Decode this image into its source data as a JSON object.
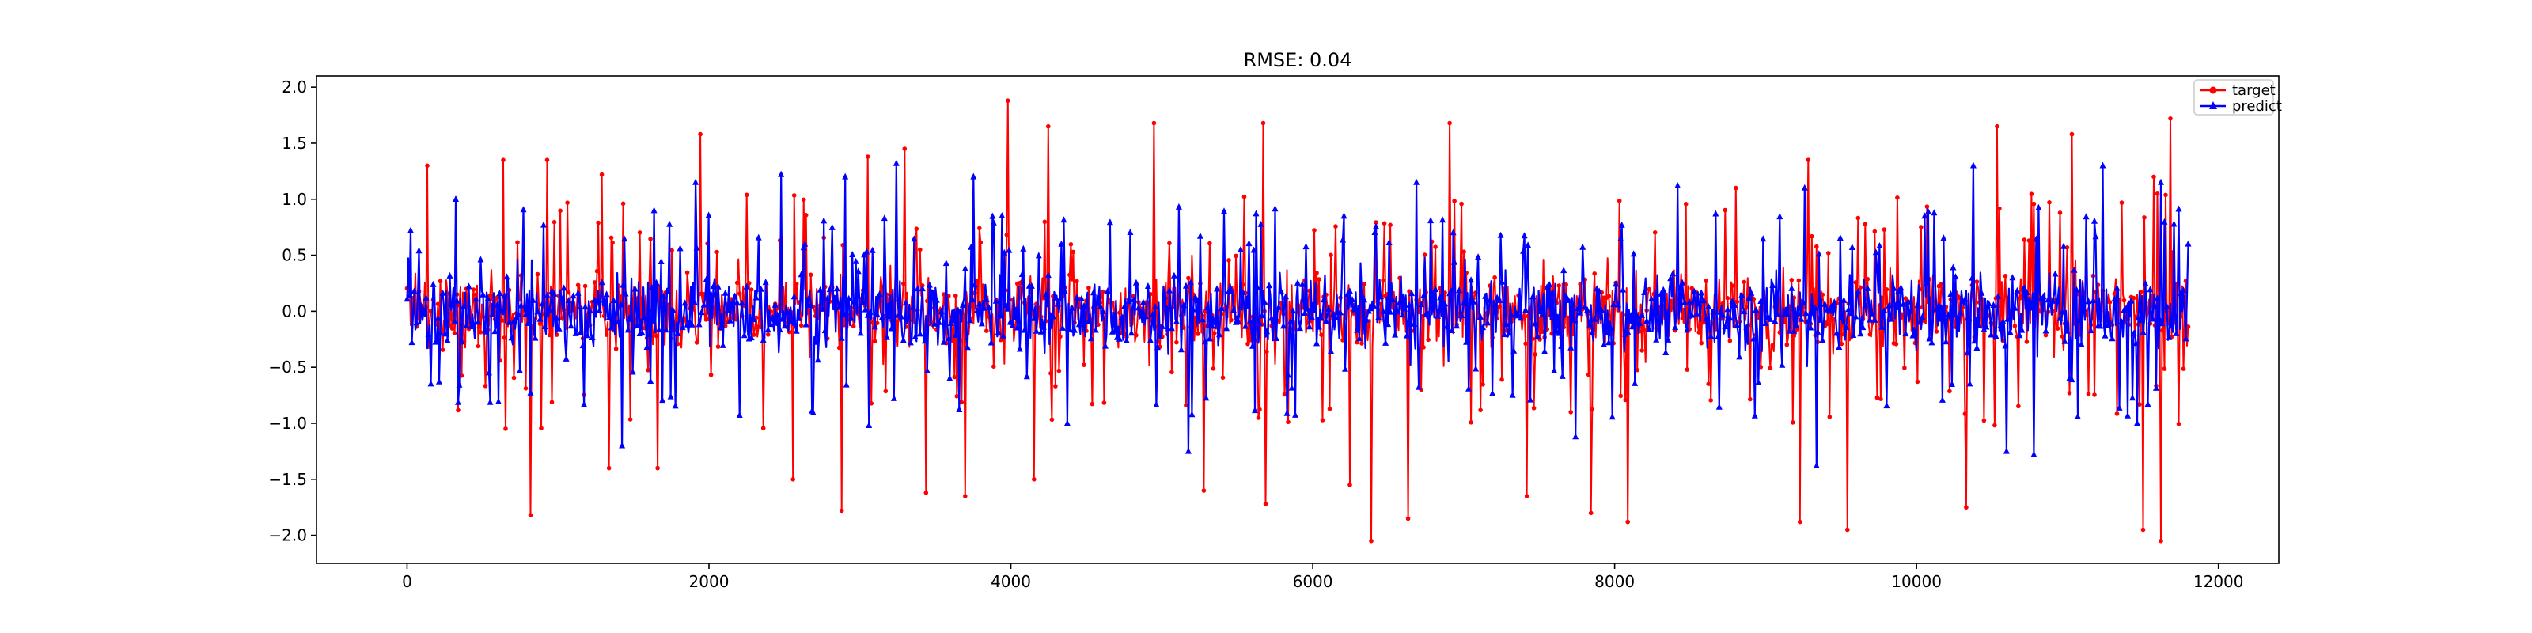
{
  "chart_data": {
    "type": "line",
    "title": "RMSE: 0.04",
    "xlabel": "",
    "ylabel": "",
    "xlim": [
      -600,
      12400
    ],
    "ylim": [
      -2.25,
      2.1
    ],
    "x_ticks": [
      0,
      2000,
      4000,
      6000,
      8000,
      10000,
      12000
    ],
    "y_ticks": [
      2.0,
      1.5,
      1.0,
      0.5,
      0.0,
      -0.5,
      -1.0,
      -1.5,
      -2.0
    ],
    "x_tick_labels": [
      "0",
      "2000",
      "4000",
      "6000",
      "8000",
      "10000",
      "12000"
    ],
    "y_tick_labels": [
      "2.0",
      "1.5",
      "1.0",
      "0.5",
      "0.0",
      "−0.5",
      "−1.0",
      "−1.5",
      "−2.0"
    ],
    "x_range": [
      0,
      11800
    ],
    "grid": false,
    "legend_position": "top-right",
    "series": [
      {
        "name": "target",
        "color": "#ff0000",
        "marker": "circle",
        "peaks": [
          [
            130,
            1.3
          ],
          [
            640,
            1.35
          ],
          [
            820,
            -1.82
          ],
          [
            930,
            1.35
          ],
          [
            1290,
            1.22
          ],
          [
            1340,
            -1.4
          ],
          [
            1660,
            -1.4
          ],
          [
            1940,
            1.58
          ],
          [
            2560,
            -1.5
          ],
          [
            2880,
            -1.78
          ],
          [
            3050,
            1.38
          ],
          [
            3300,
            1.45
          ],
          [
            3440,
            -1.62
          ],
          [
            3700,
            -1.65
          ],
          [
            3980,
            1.88
          ],
          [
            4250,
            1.65
          ],
          [
            4150,
            -1.5
          ],
          [
            4950,
            1.68
          ],
          [
            5280,
            -1.6
          ],
          [
            5670,
            1.68
          ],
          [
            5690,
            -1.72
          ],
          [
            6250,
            -1.55
          ],
          [
            6390,
            -2.05
          ],
          [
            6630,
            -1.85
          ],
          [
            6910,
            1.68
          ],
          [
            7420,
            -1.65
          ],
          [
            7840,
            -1.8
          ],
          [
            8090,
            -1.88
          ],
          [
            8800,
            1.1
          ],
          [
            9230,
            -1.88
          ],
          [
            9280,
            1.35
          ],
          [
            9540,
            -1.95
          ],
          [
            10330,
            -1.75
          ],
          [
            10530,
            1.65
          ],
          [
            11030,
            1.58
          ],
          [
            11500,
            -1.95
          ],
          [
            11620,
            -2.05
          ],
          [
            11680,
            1.72
          ],
          [
            11570,
            1.2
          ]
        ]
      },
      {
        "name": "predict",
        "color": "#0000ff",
        "marker": "triangle",
        "peaks": [
          [
            20,
            0.72
          ],
          [
            320,
            1.0
          ],
          [
            1420,
            -1.2
          ],
          [
            1910,
            1.15
          ],
          [
            2480,
            1.22
          ],
          [
            2900,
            1.2
          ],
          [
            3060,
            -1.02
          ],
          [
            3240,
            1.32
          ],
          [
            3750,
            1.2
          ],
          [
            4370,
            -1.0
          ],
          [
            5180,
            -1.25
          ],
          [
            6690,
            1.15
          ],
          [
            7740,
            -1.12
          ],
          [
            8420,
            1.12
          ],
          [
            9340,
            -1.38
          ],
          [
            9260,
            1.1
          ],
          [
            10380,
            1.3
          ],
          [
            10600,
            -1.25
          ],
          [
            10780,
            -1.28
          ],
          [
            11230,
            1.3
          ],
          [
            11620,
            1.15
          ],
          [
            11460,
            -1.0
          ],
          [
            11810,
            0.6
          ]
        ]
      }
    ]
  }
}
